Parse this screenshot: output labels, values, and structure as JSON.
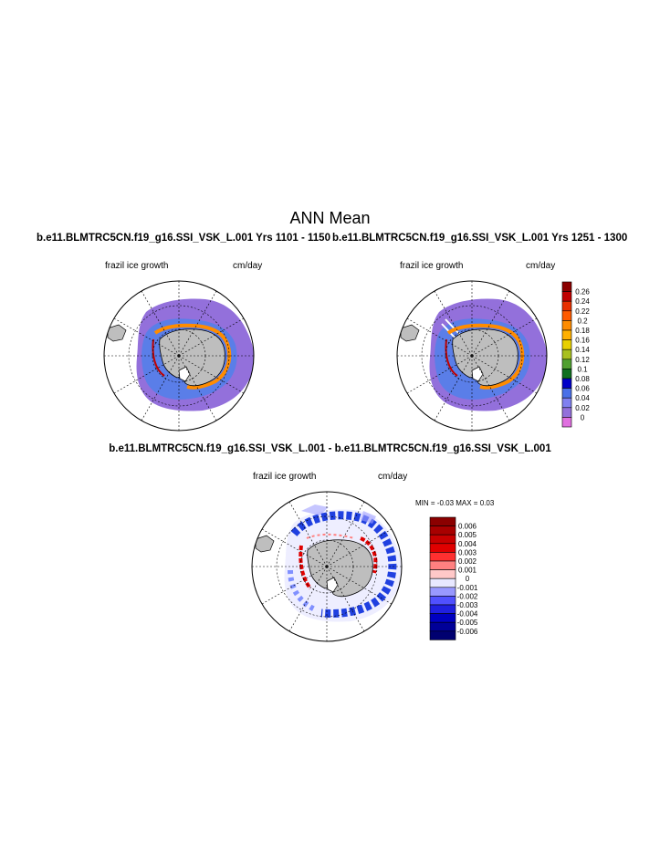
{
  "page_title": "ANN Mean",
  "panels": [
    {
      "case_label": "b.e11.BLMTRC5CN.f19_g16.SSI_VSK_L.001  Yrs 1101 - 1150",
      "variable_label": "frazil ice growth",
      "units_label": "cm/day"
    },
    {
      "case_label": "b.e11.BLMTRC5CN.f19_g16.SSI_VSK_L.001  Yrs 1251 - 1300",
      "variable_label": "frazil ice growth",
      "units_label": "cm/day"
    },
    {
      "case_label": "b.e11.BLMTRC5CN.f19_g16.SSI_VSK_L.001 - b.e11.BLMTRC5CN.f19_g16.SSI_VSK_L.001",
      "variable_label": "frazil ice growth",
      "units_label": "cm/day",
      "stats_label": "MIN =  -0.03 MAX =   0.03"
    }
  ],
  "colorbar_mean": {
    "labels": [
      "0.26",
      "0.24",
      "0.22",
      "0.2",
      "0.18",
      "0.16",
      "0.14",
      "0.12",
      "0.1",
      "0.08",
      "0.06",
      "0.04",
      "0.02",
      "0"
    ],
    "colors": [
      "#8b0000",
      "#c00000",
      "#e83000",
      "#ff5a00",
      "#ff8c00",
      "#ffb000",
      "#e8d000",
      "#a8c020",
      "#50a030",
      "#107020",
      "#0000c8",
      "#4a70e8",
      "#8080f0",
      "#9370db",
      "#e070e0"
    ]
  },
  "colorbar_diff": {
    "labels": [
      "0.006",
      "0.005",
      "0.004",
      "0.003",
      "0.002",
      "0.001",
      "0",
      "-0.001",
      "-0.002",
      "-0.003",
      "-0.004",
      "-0.005",
      "-0.006"
    ],
    "colors": [
      "#8b0000",
      "#a80000",
      "#c80000",
      "#e00000",
      "#ff3030",
      "#ff8080",
      "#ffc8c8",
      "#e8e8ff",
      "#9898ff",
      "#5050ff",
      "#2020e0",
      "#0000c0",
      "#000098",
      "#000070"
    ]
  }
}
